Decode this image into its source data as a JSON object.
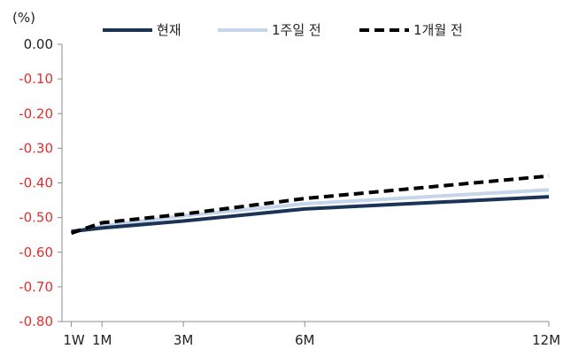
{
  "chart_data": {
    "type": "line",
    "unit_label": "(%)",
    "x": [
      "1W",
      "1M",
      "3M",
      "6M",
      "12M"
    ],
    "x_days": [
      7,
      30,
      91,
      182,
      365
    ],
    "ylim": [
      -0.8,
      0.0
    ],
    "yticks": [
      "0.00",
      "-0.10",
      "-0.20",
      "-0.30",
      "-0.40",
      "-0.50",
      "-0.60",
      "-0.70",
      "-0.80"
    ],
    "yticks_values": [
      0.0,
      -0.1,
      -0.2,
      -0.3,
      -0.4,
      -0.5,
      -0.6,
      -0.7,
      -0.8
    ],
    "negative_tick_color": "#e03030",
    "zero_tick_color": "#222222",
    "grid": false,
    "legend_position": "top",
    "series": [
      {
        "name": "현재",
        "values": [
          -0.54,
          -0.53,
          -0.51,
          -0.475,
          -0.44
        ],
        "color": "#1c3358",
        "style": "solid"
      },
      {
        "name": "1주일 전",
        "values": [
          -0.54,
          -0.525,
          -0.495,
          -0.46,
          -0.42
        ],
        "color": "#c5d5ea",
        "style": "solid"
      },
      {
        "name": "1개월 전",
        "values": [
          -0.545,
          -0.515,
          -0.49,
          -0.445,
          -0.38
        ],
        "color": "#000000",
        "style": "dashed"
      }
    ]
  }
}
